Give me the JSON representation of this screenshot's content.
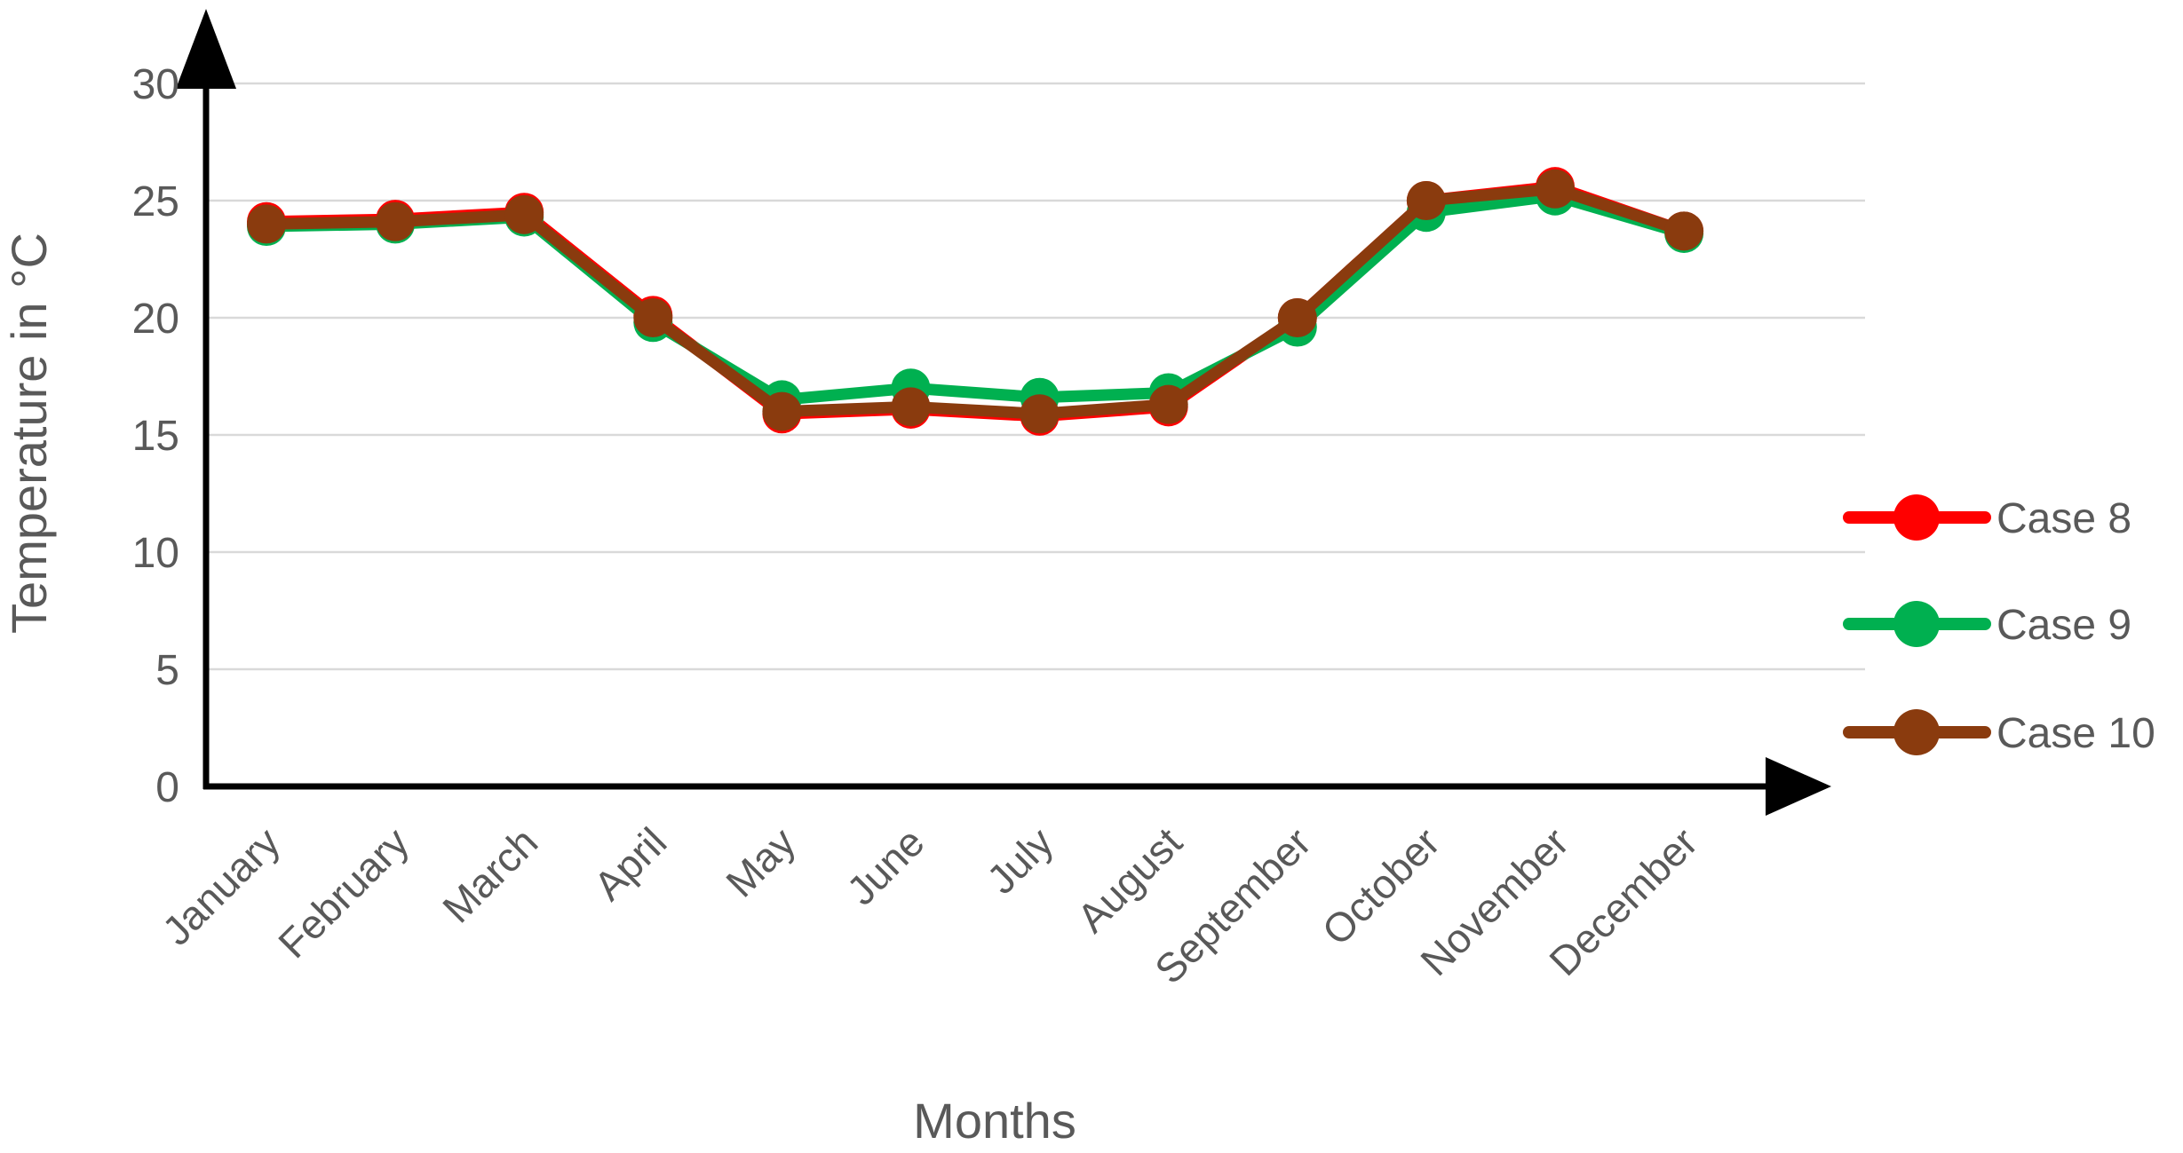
{
  "chart_data": {
    "type": "line",
    "title": "",
    "xlabel": "Months",
    "ylabel": "Temperature in °C",
    "categories": [
      "January",
      "February",
      "March",
      "April",
      "May",
      "June",
      "July",
      "August",
      "September",
      "October",
      "November",
      "December"
    ],
    "series": [
      {
        "name": "Case 8",
        "color": "#FF0000",
        "values": [
          24.1,
          24.2,
          24.5,
          20.1,
          15.9,
          16.1,
          15.8,
          16.2,
          20.0,
          25.0,
          25.6,
          23.7
        ]
      },
      {
        "name": "Case 9",
        "color": "#00B050",
        "values": [
          23.9,
          24.0,
          24.3,
          19.8,
          16.5,
          17.0,
          16.6,
          16.8,
          19.6,
          24.5,
          25.2,
          23.6
        ]
      },
      {
        "name": "Case 10",
        "color": "#8A3B0E",
        "values": [
          24.0,
          24.1,
          24.4,
          20.0,
          16.0,
          16.2,
          15.9,
          16.3,
          20.0,
          25.0,
          25.5,
          23.7
        ]
      }
    ],
    "ylim": [
      0,
      30
    ],
    "yticks": [
      0,
      5,
      10,
      15,
      20,
      25,
      30
    ],
    "grid": "horizontal-only",
    "legend_position": "right",
    "axis_arrows": true,
    "marker": "circle",
    "colors": {
      "grid": "#D9D9D9",
      "axis": "#000000",
      "text": "#595959",
      "background": "#FFFFFF"
    }
  }
}
